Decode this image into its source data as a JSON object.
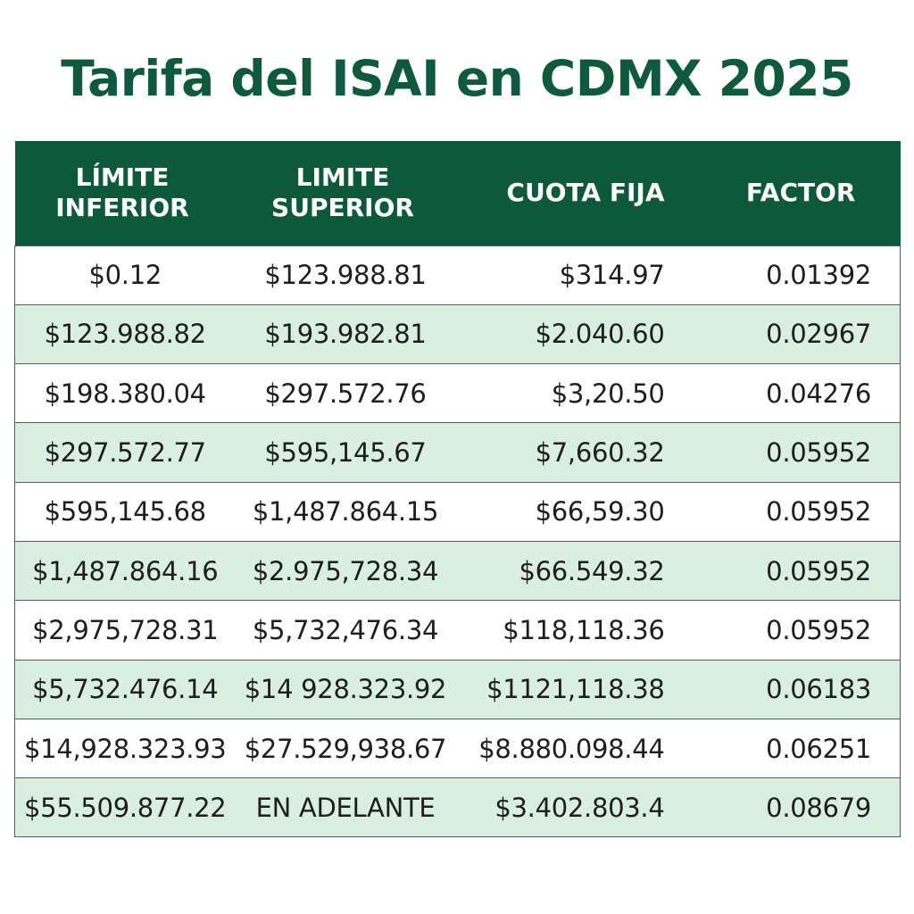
{
  "title": "Tarifa del ISAI en CDMX 2025",
  "colors": {
    "title": "#0d5a3c",
    "header_bg": "#0c5a3b",
    "header_text": "#ffffff",
    "row_alt_bg": "#d8efe1",
    "row_bg": "#ffffff"
  },
  "table": {
    "headers": {
      "lower_line1": "LÍMITE",
      "lower_line2": "INFERIOR",
      "upper_line1": "LIMITE",
      "upper_line2": "SUPERIOR",
      "fee": "CUOTA FIJA",
      "factor": "FACTOR"
    },
    "rows": [
      {
        "lower": "$0.12",
        "upper": "$123.988.81",
        "fee": "$314.97",
        "factor": "0.01392"
      },
      {
        "lower": "$123.988.82",
        "upper": "$193.982.81",
        "fee": "$2.040.60",
        "factor": "0.02967"
      },
      {
        "lower": "$198.380.04",
        "upper": "$297.572.76",
        "fee": "$3,20.50",
        "factor": "0.04276"
      },
      {
        "lower": "$297.572.77",
        "upper": "$595,145.67",
        "fee": "$7,660.32",
        "factor": "0.05952"
      },
      {
        "lower": "$595,145.68",
        "upper": "$1,487.864.15",
        "fee": "$66,59.30",
        "factor": "0.05952"
      },
      {
        "lower": "$1,487.864.16",
        "upper": "$2.975,728.34",
        "fee": "$66.549.32",
        "factor": "0.05952"
      },
      {
        "lower": "$2,975,728.31",
        "upper": "$5,732,476.34",
        "fee": "$118,118.36",
        "factor": "0.05952"
      },
      {
        "lower": "$5,732.476.14",
        "upper": "$14 928.323.92",
        "fee": "$1121,118.38",
        "factor": "0.06183"
      },
      {
        "lower": "$14,928.323.93",
        "upper": "$27.529,938.67",
        "fee": "$8.880.098.44",
        "factor": "0.06251"
      },
      {
        "lower": "$55.509.877.22",
        "upper": "EN ADELANTE",
        "fee": "$3.402.803.4",
        "factor": "0.08679"
      }
    ]
  }
}
